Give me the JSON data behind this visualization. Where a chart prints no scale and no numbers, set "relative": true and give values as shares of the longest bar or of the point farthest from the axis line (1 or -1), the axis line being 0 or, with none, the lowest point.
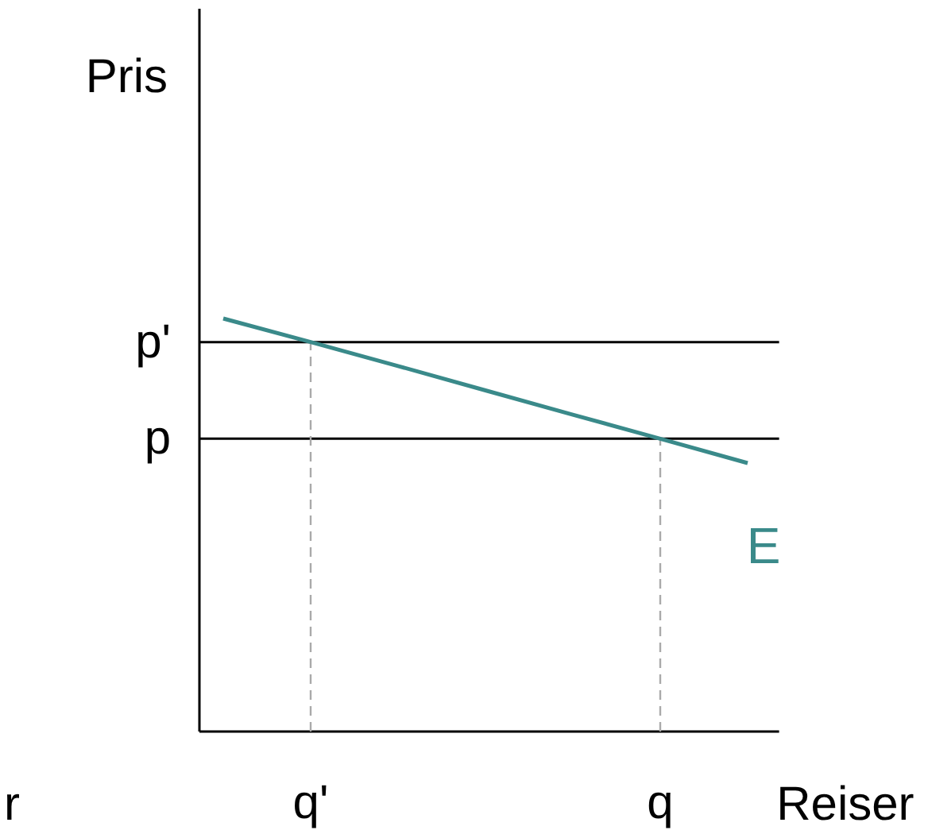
{
  "chart_data": {
    "type": "line",
    "relative": true,
    "xlabel": "Reiser",
    "ylabel": "Pris",
    "categories": [
      null,
      "q'",
      null,
      null,
      null,
      "q",
      null
    ],
    "series": [
      {
        "name": "E",
        "color": "#3a8a8a",
        "values": [
          1,
          0.943,
          0.885,
          0.826,
          0.767,
          0.709,
          0.65
        ]
      }
    ],
    "ref_lines": [
      {
        "axis": "y",
        "value": 0.943,
        "label": "p'",
        "color": "#000000",
        "line_style": "solid"
      },
      {
        "axis": "y",
        "value": 0.709,
        "label": "p",
        "color": "#000000",
        "line_style": "solid"
      },
      {
        "axis": "x",
        "value": "q'",
        "color": "#aaaaaa",
        "line_style": "dashed"
      },
      {
        "axis": "x",
        "value": "q",
        "color": "#aaaaaa",
        "line_style": "dashed"
      }
    ],
    "annotations": [
      "r"
    ],
    "grid": false,
    "legend": false,
    "marker": "none",
    "line_style": "solid"
  }
}
